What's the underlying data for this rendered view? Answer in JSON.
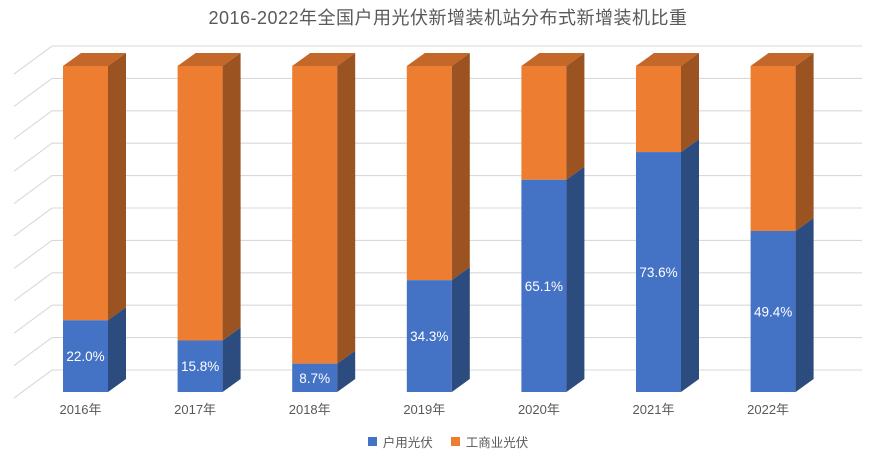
{
  "title": "2016-2022年全国户用光伏新增装机站分布式新增装机比重",
  "chart_data": {
    "type": "bar",
    "subtype": "3d-stacked-column-100pct",
    "title": "2016-2022年全国户用光伏新增装机站分布式新增装机比重",
    "categories": [
      "2016年",
      "2017年",
      "2018年",
      "2019年",
      "2020年",
      "2021年",
      "2022年"
    ],
    "series": [
      {
        "name": "户用光伏",
        "values": [
          22.0,
          15.8,
          8.7,
          34.3,
          65.1,
          73.6,
          49.4
        ],
        "data_labels": [
          "22.0%",
          "15.8%",
          "8.7%",
          "34.3%",
          "65.1%",
          "73.6%",
          "49.4%"
        ],
        "front_color": "#4472C4",
        "side_color": "#2C4B7E"
      },
      {
        "name": "工商业光伏",
        "values": [
          78.0,
          84.2,
          91.3,
          65.7,
          34.9,
          26.4,
          50.6
        ],
        "data_labels": [],
        "front_color": "#ED7D31",
        "side_color": "#9B5321",
        "top_color": "#C4682A"
      }
    ],
    "xlabel": "",
    "ylabel": "",
    "ylim": [
      0,
      100
    ],
    "gridline_step_pct": 10,
    "grid": true,
    "value_axis_labels_visible": false,
    "legend_position": "bottom",
    "data_label_color": "#FFFFFF",
    "axis_text_color": "#595959",
    "title_color": "#595959",
    "gridline_color": "#D9D9D9",
    "background_color": "#FFFFFF"
  }
}
